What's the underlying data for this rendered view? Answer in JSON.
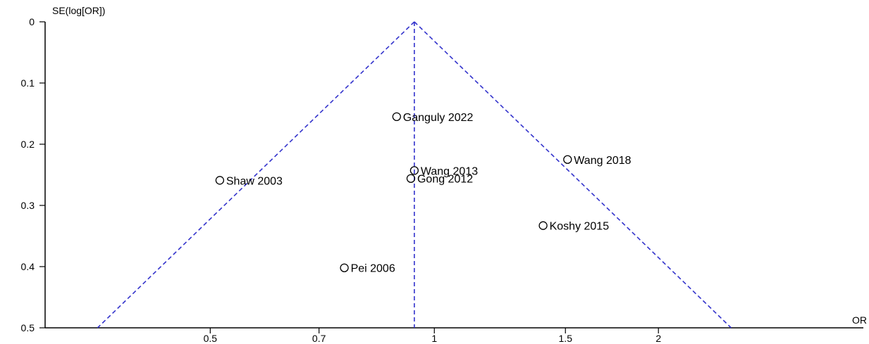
{
  "chart_data": {
    "type": "scatter",
    "title": "",
    "xlabel": "OR",
    "ylabel": "SE(log[OR])",
    "x_scale": "log",
    "y_reversed": true,
    "xlim": [
      0.3,
      3.77
    ],
    "ylim": [
      0,
      0.5
    ],
    "x_ticks": [
      {
        "value": 0.5,
        "label": "0.5"
      },
      {
        "value": 0.7,
        "label": "0.7"
      },
      {
        "value": 1,
        "label": "1"
      },
      {
        "value": 1.5,
        "label": "1.5"
      },
      {
        "value": 2,
        "label": "2"
      }
    ],
    "y_ticks": [
      {
        "value": 0,
        "label": "0"
      },
      {
        "value": 0.1,
        "label": "0.1"
      },
      {
        "value": 0.2,
        "label": "0.2"
      },
      {
        "value": 0.3,
        "label": "0.3"
      },
      {
        "value": 0.4,
        "label": "0.4"
      },
      {
        "value": 0.5,
        "label": "0.5"
      }
    ],
    "pooled_or": 0.94,
    "funnel_z": 1.96,
    "points": [
      {
        "label": "Ganguly 2022",
        "or": 0.89,
        "se": 0.155
      },
      {
        "label": "Wang 2018",
        "or": 1.51,
        "se": 0.225
      },
      {
        "label": "Wang 2013",
        "or": 0.94,
        "se": 0.243
      },
      {
        "label": "Gong 2012",
        "or": 0.93,
        "se": 0.256
      },
      {
        "label": "Shaw 2003",
        "or": 0.515,
        "se": 0.259
      },
      {
        "label": "Koshy 2015",
        "or": 1.4,
        "se": 0.333
      },
      {
        "label": "Pei 2006",
        "or": 0.757,
        "se": 0.402
      }
    ],
    "colors": {
      "funnel": "#3333cc",
      "axis": "#000000",
      "marker": "#000000"
    },
    "grid": false,
    "legend": "none"
  }
}
